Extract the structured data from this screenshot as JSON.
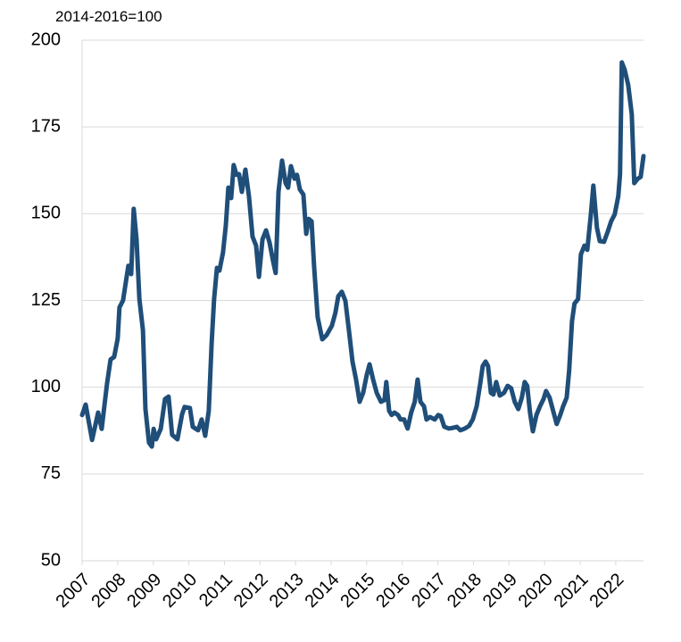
{
  "chart_data": {
    "type": "line",
    "y_label": "2014-2016=100",
    "x": [
      2007.0,
      2007.1,
      2007.28,
      2007.45,
      2007.55,
      2007.7,
      2007.8,
      2007.9,
      2008.0,
      2008.05,
      2008.15,
      2008.3,
      2008.38,
      2008.45,
      2008.53,
      2008.61,
      2008.71,
      2008.78,
      2008.88,
      2008.96,
      2009.01,
      2009.08,
      2009.21,
      2009.33,
      2009.43,
      2009.53,
      2009.68,
      2009.81,
      2009.88,
      2010.03,
      2010.11,
      2010.26,
      2010.36,
      2010.46,
      2010.56,
      2010.64,
      2010.71,
      2010.79,
      2010.86,
      2010.96,
      2011.04,
      2011.11,
      2011.19,
      2011.26,
      2011.34,
      2011.41,
      2011.49,
      2011.59,
      2011.69,
      2011.79,
      2011.89,
      2011.97,
      2012.07,
      2012.17,
      2012.27,
      2012.37,
      2012.44,
      2012.52,
      2012.62,
      2012.72,
      2012.79,
      2012.87,
      2012.97,
      2013.04,
      2013.12,
      2013.22,
      2013.3,
      2013.37,
      2013.45,
      2013.52,
      2013.62,
      2013.75,
      2013.87,
      2014.02,
      2014.12,
      2014.2,
      2014.3,
      2014.4,
      2014.5,
      2014.6,
      2014.7,
      2014.8,
      2014.9,
      2015.0,
      2015.08,
      2015.18,
      2015.28,
      2015.4,
      2015.5,
      2015.55,
      2015.63,
      2015.7,
      2015.78,
      2015.88,
      2015.95,
      2016.05,
      2016.15,
      2016.25,
      2016.35,
      2016.43,
      2016.51,
      2016.61,
      2016.68,
      2016.78,
      2016.91,
      2017.01,
      2017.08,
      2017.18,
      2017.31,
      2017.43,
      2017.53,
      2017.63,
      2017.76,
      2017.88,
      2017.98,
      2018.09,
      2018.19,
      2018.26,
      2018.34,
      2018.41,
      2018.49,
      2018.56,
      2018.64,
      2018.74,
      2018.86,
      2018.96,
      2019.06,
      2019.16,
      2019.26,
      2019.36,
      2019.44,
      2019.51,
      2019.59,
      2019.67,
      2019.77,
      2019.87,
      2019.97,
      2020.04,
      2020.14,
      2020.24,
      2020.34,
      2020.44,
      2020.52,
      2020.62,
      2020.69,
      2020.77,
      2020.84,
      2020.94,
      2021.02,
      2021.12,
      2021.2,
      2021.3,
      2021.37,
      2021.47,
      2021.55,
      2021.67,
      2021.77,
      2021.87,
      2021.97,
      2022.07,
      2022.12,
      2022.17,
      2022.25,
      2022.35,
      2022.45,
      2022.52,
      2022.62,
      2022.7,
      2022.78
    ],
    "series": [
      {
        "color": "#1f4e79",
        "values": [
          92,
          95,
          84.8,
          92.7,
          88,
          101,
          108,
          108.7,
          114,
          123,
          125,
          135,
          132.6,
          151.4,
          142.6,
          125.4,
          116.4,
          93.7,
          84,
          82.9,
          88,
          85,
          88,
          96.6,
          97.3,
          86.3,
          85,
          92.2,
          94.3,
          94,
          88.6,
          87.6,
          90.7,
          86,
          93.2,
          112.5,
          125.4,
          134.4,
          133.6,
          138.8,
          146.7,
          157.5,
          154.5,
          164,
          161.2,
          161.4,
          156.3,
          162.7,
          155,
          143.4,
          140.8,
          131.8,
          142.6,
          145.2,
          141.6,
          136.2,
          132.9,
          156.3,
          165.3,
          158.8,
          157.5,
          163.7,
          160.1,
          161.2,
          157,
          155.5,
          144.2,
          148.5,
          147.8,
          134.9,
          120.2,
          113.8,
          115,
          117.7,
          121.5,
          126.2,
          127.5,
          124.9,
          116.4,
          107.4,
          102.2,
          95.8,
          98.4,
          103.5,
          106.6,
          102.2,
          98.4,
          95.8,
          96.3,
          101.5,
          93.2,
          92,
          92.7,
          92,
          90.7,
          90.7,
          88.1,
          92.7,
          95.8,
          102.2,
          95.8,
          94.5,
          90.7,
          91.4,
          90.7,
          92,
          91.7,
          88.6,
          88.1,
          88.3,
          88.6,
          87.6,
          88.1,
          88.9,
          90.7,
          94.5,
          101,
          106.1,
          107.4,
          106.1,
          98.4,
          97.9,
          101.5,
          97.6,
          98.4,
          100.4,
          99.7,
          95.8,
          93.7,
          97,
          101.5,
          100.4,
          92.7,
          87.3,
          92,
          94.5,
          96.6,
          98.9,
          97,
          93.2,
          89.4,
          92,
          94.5,
          97,
          104.8,
          119,
          124.1,
          125.4,
          138.3,
          140.8,
          139.6,
          149.8,
          158.1,
          146,
          142.1,
          141.9,
          144.7,
          147.8,
          149.8,
          155,
          161.4,
          193.6,
          191.5,
          187.1,
          178.6,
          158.8,
          160.1,
          160.6,
          166.6
        ]
      }
    ],
    "xlim": [
      2007,
      2022.78
    ],
    "xticks": [
      2007,
      2008,
      2009,
      2010,
      2011,
      2012,
      2013,
      2014,
      2015,
      2016,
      2017,
      2018,
      2019,
      2020,
      2021,
      2022
    ],
    "ylim": [
      50,
      200
    ],
    "yticks": [
      50,
      75,
      100,
      125,
      150,
      175,
      200
    ],
    "grid": true
  }
}
